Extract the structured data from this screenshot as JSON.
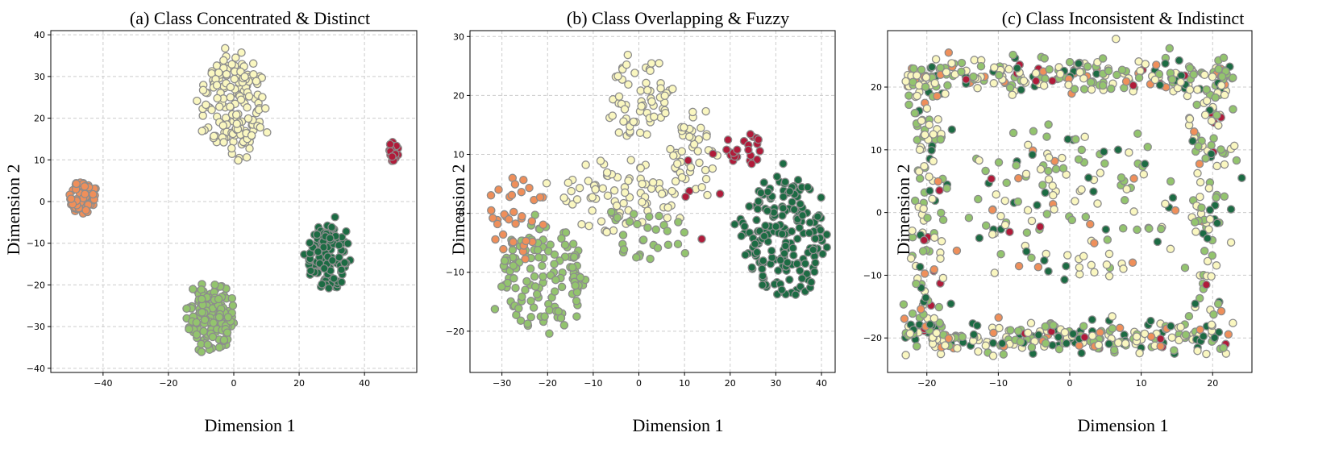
{
  "figure": {
    "colors": {
      "cream": "#FAF7C0",
      "orange": "#EF8F5A",
      "crimson": "#B01B3A",
      "lightgreen": "#93C46E",
      "darkgreen": "#1C6B43"
    }
  },
  "chart_data": [
    {
      "type": "scatter",
      "title": "(a) Class Concentrated & Distinct",
      "xlabel": "Dimension 1",
      "ylabel": "Dimension 2",
      "xlim": [
        -56,
        56
      ],
      "ylim": [
        -41,
        41
      ],
      "xticks": [
        -40,
        -20,
        0,
        20,
        40
      ],
      "yticks": [
        -40,
        -30,
        -20,
        -10,
        0,
        10,
        20,
        30,
        40
      ],
      "grid": true,
      "edge_color": "#8c8c8c",
      "clusters": [
        {
          "class": "cream",
          "count": 170,
          "shape": "blob",
          "cx": 0,
          "cy": 23,
          "rx": 10,
          "ry": 12
        },
        {
          "class": "orange",
          "count": 60,
          "shape": "blob",
          "cx": -46,
          "cy": 1,
          "rx": 4,
          "ry": 4
        },
        {
          "class": "crimson",
          "count": 20,
          "shape": "blob",
          "cx": 49,
          "cy": 12,
          "rx": 1.5,
          "ry": 2.5
        },
        {
          "class": "darkgreen",
          "count": 130,
          "shape": "blob",
          "cx": 29,
          "cy": -13,
          "rx": 6,
          "ry": 7.5
        },
        {
          "class": "lightgreen",
          "count": 150,
          "shape": "blob",
          "cx": -7,
          "cy": -28,
          "rx": 7,
          "ry": 8
        }
      ]
    },
    {
      "type": "scatter",
      "title": "(b) Class Overlapping & Fuzzy",
      "xlabel": "Dimension 1",
      "ylabel": "Dimension 2",
      "xlim": [
        -37,
        43
      ],
      "ylim": [
        -27,
        31
      ],
      "xticks": [
        -30,
        -20,
        -10,
        0,
        10,
        20,
        30,
        40
      ],
      "yticks": [
        -20,
        -10,
        0,
        10,
        20,
        30
      ],
      "grid": true,
      "edge_color": "#8c8c8c",
      "clusters": [
        {
          "class": "cream",
          "count": 80,
          "shape": "blob",
          "cx": -5,
          "cy": 3,
          "rx": 14,
          "ry": 6
        },
        {
          "class": "cream",
          "count": 60,
          "shape": "blob",
          "cx": 0,
          "cy": 20,
          "rx": 7,
          "ry": 7
        },
        {
          "class": "cream",
          "count": 45,
          "shape": "blob",
          "cx": 12,
          "cy": 10,
          "rx": 5,
          "ry": 7
        },
        {
          "class": "lightgreen",
          "count": 130,
          "shape": "blob",
          "cx": -22,
          "cy": -11,
          "rx": 10,
          "ry": 9
        },
        {
          "class": "lightgreen",
          "count": 30,
          "shape": "blob",
          "cx": 3,
          "cy": -3,
          "rx": 9,
          "ry": 5
        },
        {
          "class": "orange",
          "count": 35,
          "shape": "blob",
          "cx": -27,
          "cy": 0,
          "rx": 6,
          "ry": 7
        },
        {
          "class": "darkgreen",
          "count": 190,
          "shape": "blob",
          "cx": 32,
          "cy": -4,
          "rx": 9,
          "ry": 10
        },
        {
          "class": "crimson",
          "count": 22,
          "shape": "blob",
          "cx": 23,
          "cy": 11,
          "rx": 4,
          "ry": 3
        },
        {
          "class": "crimson",
          "count": 6,
          "shape": "blob",
          "cx": 13,
          "cy": 5,
          "rx": 5,
          "ry": 10
        }
      ]
    },
    {
      "type": "scatter",
      "title": "(c) Class Inconsistent & Indistinct",
      "xlabel": "Dimension 1",
      "ylabel": "Dimension 2",
      "xlim": [
        -25.5,
        25.5
      ],
      "ylim": [
        -25.5,
        29
      ],
      "xticks": [
        -20,
        -10,
        0,
        10,
        20
      ],
      "yticks": [
        -20,
        -10,
        0,
        10,
        20
      ],
      "grid": true,
      "edge_color": "#8c8c8c",
      "clusters": [
        {
          "class": "mixed",
          "count": 240,
          "shape": "band",
          "axis": "h",
          "x1": -23,
          "x2": 23,
          "y": 22,
          "spread": 2.5
        },
        {
          "class": "mixed",
          "count": 240,
          "shape": "band",
          "axis": "h",
          "x1": -23,
          "x2": 22,
          "y": -20,
          "spread": 2
        },
        {
          "class": "mixed",
          "count": 130,
          "shape": "band",
          "axis": "v",
          "x": -20,
          "y1": -20,
          "y2": 22,
          "spread": 2.5
        },
        {
          "class": "mixed",
          "count": 120,
          "shape": "band",
          "axis": "v",
          "x": 19,
          "y1": -20,
          "y2": 22,
          "spread": 3
        },
        {
          "class": "mixed",
          "count": 140,
          "shape": "blob",
          "cx": 0,
          "cy": 2,
          "rx": 14,
          "ry": 12
        }
      ],
      "class_weights": {
        "cream": 0.35,
        "lightgreen": 0.35,
        "darkgreen": 0.18,
        "orange": 0.07,
        "crimson": 0.05
      }
    }
  ]
}
